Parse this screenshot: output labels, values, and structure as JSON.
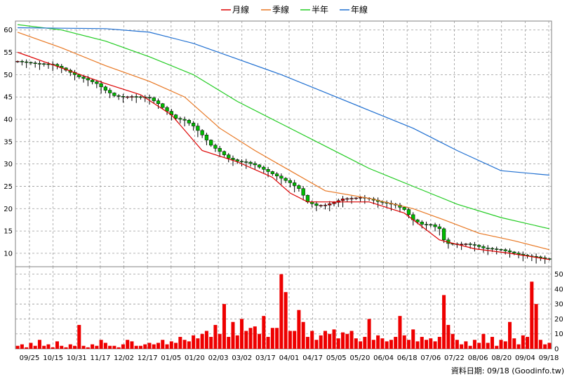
{
  "chart_data": {
    "type": "line",
    "title": "",
    "legend": {
      "placement": "top-center",
      "items": [
        {
          "name": "月線",
          "color": "#dd0000"
        },
        {
          "name": "季線",
          "color": "#e87722"
        },
        {
          "name": "半年",
          "color": "#22cc22"
        },
        {
          "name": "年線",
          "color": "#1f6fd1"
        }
      ]
    },
    "price_axis": {
      "ylim": [
        7,
        62
      ],
      "ticks": [
        10,
        15,
        20,
        25,
        30,
        35,
        40,
        45,
        50,
        55,
        60
      ]
    },
    "volume_axis": {
      "ylim": [
        0,
        55
      ],
      "ticks": [
        0,
        10,
        20,
        30,
        40,
        50
      ]
    },
    "x_ticks": [
      "09/25",
      "10/15",
      "10/31",
      "11/17",
      "12/02",
      "12/17",
      "01/05",
      "01/20",
      "02/03",
      "03/02",
      "03/17",
      "04/01",
      "04/17",
      "05/05",
      "05/20",
      "06/04",
      "06/18",
      "07/06",
      "07/22",
      "08/06",
      "08/20",
      "09/04",
      "09/18"
    ],
    "grid": true,
    "colors": {
      "up": "#dd0000",
      "down": "#00bb00",
      "wick": "#000000",
      "volume": "#ee0000"
    },
    "series": [
      {
        "name": "月線",
        "color": "#dd0000",
        "points": [
          [
            0,
            55
          ],
          [
            10,
            51.5
          ],
          [
            20,
            48
          ],
          [
            28,
            45.5
          ],
          [
            35,
            41
          ],
          [
            42,
            33
          ],
          [
            50,
            30.5
          ],
          [
            58,
            27
          ],
          [
            62,
            23.5
          ],
          [
            66,
            21.5
          ],
          [
            72,
            21.5
          ],
          [
            80,
            21.5
          ],
          [
            88,
            19
          ],
          [
            96,
            13
          ],
          [
            104,
            11
          ],
          [
            112,
            10
          ],
          [
            121,
            8.6
          ]
        ]
      },
      {
        "name": "季線",
        "color": "#e87722",
        "points": [
          [
            0,
            59.5
          ],
          [
            10,
            56
          ],
          [
            20,
            52
          ],
          [
            30,
            48.5
          ],
          [
            38,
            45
          ],
          [
            46,
            38
          ],
          [
            54,
            33
          ],
          [
            62,
            28.5
          ],
          [
            70,
            24
          ],
          [
            80,
            22.3
          ],
          [
            90,
            20
          ],
          [
            97,
            17.5
          ],
          [
            105,
            14.5
          ],
          [
            113,
            12.8
          ],
          [
            121,
            10.8
          ]
        ]
      },
      {
        "name": "半年",
        "color": "#22cc22",
        "points": [
          [
            0,
            61.2
          ],
          [
            10,
            60
          ],
          [
            20,
            57.5
          ],
          [
            30,
            54
          ],
          [
            40,
            50
          ],
          [
            50,
            44
          ],
          [
            60,
            39
          ],
          [
            70,
            34
          ],
          [
            80,
            29
          ],
          [
            90,
            25
          ],
          [
            100,
            21
          ],
          [
            110,
            18
          ],
          [
            121,
            15.5
          ]
        ]
      },
      {
        "name": "年線",
        "color": "#1f6fd1",
        "points": [
          [
            0,
            60.5
          ],
          [
            10,
            60.4
          ],
          [
            20,
            60.3
          ],
          [
            30,
            59.5
          ],
          [
            40,
            57
          ],
          [
            50,
            53.5
          ],
          [
            60,
            50
          ],
          [
            70,
            46
          ],
          [
            80,
            42
          ],
          [
            90,
            38
          ],
          [
            100,
            33
          ],
          [
            110,
            28.5
          ],
          [
            121,
            27.5
          ]
        ]
      }
    ],
    "price_path": [
      [
        0,
        53
      ],
      [
        4,
        52.5
      ],
      [
        8,
        52.3
      ],
      [
        10,
        51.5
      ],
      [
        12,
        50.5
      ],
      [
        14,
        49.5
      ],
      [
        16,
        48.8
      ],
      [
        18,
        48
      ],
      [
        20,
        46.5
      ],
      [
        22,
        45.3
      ],
      [
        24,
        45
      ],
      [
        26,
        45.1
      ],
      [
        28,
        45
      ],
      [
        30,
        44.8
      ],
      [
        32,
        43.5
      ],
      [
        34,
        41.8
      ],
      [
        36,
        40.2
      ],
      [
        38,
        39.8
      ],
      [
        40,
        38.5
      ],
      [
        42,
        36.5
      ],
      [
        44,
        34.2
      ],
      [
        46,
        32.8
      ],
      [
        48,
        31.3
      ],
      [
        50,
        30.6
      ],
      [
        52,
        30.4
      ],
      [
        54,
        29.8
      ],
      [
        56,
        28.8
      ],
      [
        58,
        27.8
      ],
      [
        60,
        26.8
      ],
      [
        62,
        25.8
      ],
      [
        64,
        24.5
      ],
      [
        66,
        21.5
      ],
      [
        68,
        20.7
      ],
      [
        70,
        20.8
      ],
      [
        72,
        21.4
      ],
      [
        74,
        22.2
      ],
      [
        76,
        22.3
      ],
      [
        78,
        22.5
      ],
      [
        80,
        22.2
      ],
      [
        82,
        21.6
      ],
      [
        84,
        21.2
      ],
      [
        86,
        20.8
      ],
      [
        88,
        19.8
      ],
      [
        90,
        17.5
      ],
      [
        92,
        16.5
      ],
      [
        94,
        16.4
      ],
      [
        96,
        15.5
      ],
      [
        97,
        13
      ],
      [
        98,
        12.2
      ],
      [
        100,
        12
      ],
      [
        102,
        12.1
      ],
      [
        104,
        11.8
      ],
      [
        106,
        11.2
      ],
      [
        108,
        11
      ],
      [
        110,
        10.8
      ],
      [
        112,
        10.3
      ],
      [
        114,
        9.8
      ],
      [
        116,
        9.4
      ],
      [
        118,
        9.2
      ],
      [
        120,
        8.8
      ],
      [
        121,
        8.7
      ]
    ],
    "volumes": [
      2,
      3,
      1,
      4,
      2,
      6,
      2,
      3,
      1,
      5,
      2,
      1,
      3,
      2,
      16,
      2,
      1,
      3,
      2,
      6,
      4,
      2,
      2,
      1,
      3,
      6,
      5,
      2,
      2,
      3,
      4,
      3,
      4,
      6,
      3,
      5,
      4,
      8,
      6,
      5,
      9,
      7,
      10,
      12,
      8,
      16,
      10,
      30,
      8,
      18,
      9,
      20,
      12,
      14,
      15,
      10,
      22,
      8,
      14,
      14,
      50,
      38,
      12,
      12,
      26,
      18,
      8,
      12,
      6,
      9,
      12,
      10,
      13,
      7,
      11,
      10,
      12,
      7,
      5,
      8,
      20,
      6,
      9,
      7,
      5,
      6,
      8,
      22,
      9,
      6,
      13,
      5,
      8,
      6,
      7,
      5,
      8,
      36,
      16,
      10,
      6,
      3,
      5,
      2,
      6,
      4,
      10,
      4,
      8,
      2,
      6,
      5,
      18,
      7,
      3,
      9,
      8,
      45,
      30,
      6,
      3,
      4
    ]
  },
  "footer": "資料日期: 09/18 (Goodinfo.tw)"
}
